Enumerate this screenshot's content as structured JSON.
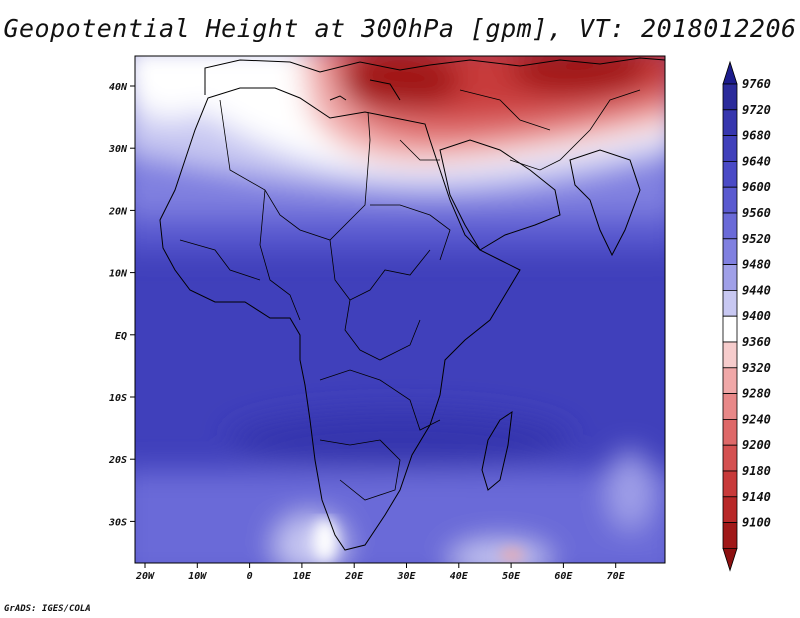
{
  "title": "Geopotential Height at 300hPa [gpm], VT: 2018012206",
  "credit": "GrADS: IGES/COLA",
  "map": {
    "lon_labels": [
      "20W",
      "10W",
      "0",
      "10E",
      "20E",
      "30E",
      "40E",
      "50E",
      "60E",
      "70E"
    ],
    "lat_labels": [
      "40N",
      "30N",
      "20N",
      "10N",
      "EQ",
      "10S",
      "20S",
      "30S"
    ]
  },
  "colorbar": {
    "levels": [
      "9760",
      "9720",
      "9680",
      "9640",
      "9600",
      "9560",
      "9520",
      "9480",
      "9440",
      "9400",
      "9360",
      "9320",
      "9280",
      "9240",
      "9200",
      "9180",
      "9140",
      "9100"
    ],
    "colors": [
      "#2b2b9b",
      "#3636ae",
      "#4040bb",
      "#4a4ac6",
      "#5a5ad0",
      "#6a6ad8",
      "#8080e0",
      "#a0a0e8",
      "#c8c8f2",
      "#ffffff",
      "#f6cccc",
      "#f0a8a8",
      "#e88888",
      "#de6868",
      "#d45050",
      "#c83a3a",
      "#b82828",
      "#a01818"
    ],
    "top_color": "#1c1c8c",
    "bottom_color": "#8c1010"
  }
}
